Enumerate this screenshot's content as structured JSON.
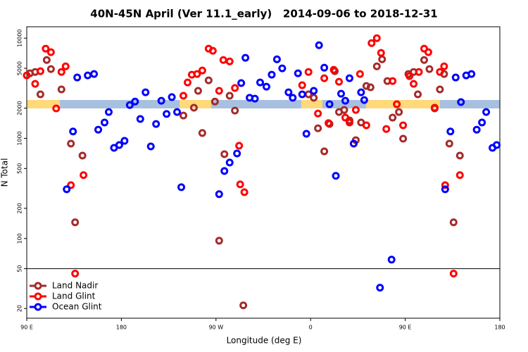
{
  "chart_data": {
    "type": "scatter",
    "title": "40N-45N April (Ver 11.1_early)   2014-09-06 to 2018-12-31",
    "xlabel": "Longitude (deg E)",
    "ylabel": "N Total",
    "xlim": [
      90,
      540
    ],
    "xticks": [
      {
        "value": 90,
        "label": "90 E"
      },
      180,
      {
        "value": 270,
        "label": "90 W"
      },
      {
        "value": 360,
        "label": "0"
      },
      {
        "value": 450,
        "label": "90 E"
      },
      {
        "value": 540,
        "label": "180"
      }
    ],
    "ylim": [
      16,
      13000
    ],
    "yscale": "log",
    "yticks": [
      20,
      50,
      100,
      200,
      500,
      1000,
      2000,
      5000,
      10000
    ],
    "split_at": 50,
    "legend": "lower left",
    "series": [
      {
        "name": "Land Nadir",
        "color": "#a52a2a",
        "x": [
          93,
          98,
          103,
          109,
          113,
          123,
          132,
          136,
          143,
          239,
          249,
          253,
          257,
          263,
          269,
          273,
          278,
          283,
          288,
          296,
          358,
          363,
          367,
          373,
          378,
          383,
          387,
          392,
          397,
          403,
          408,
          413,
          417,
          423,
          428,
          433,
          438,
          444,
          448,
          453,
          458,
          462,
          468,
          473,
          478,
          483,
          487,
          492,
          496,
          502
        ],
        "values": [
          4460,
          4600,
          2750,
          6050,
          4910,
          3080,
          885,
          145,
          673,
          1690,
          2020,
          2980,
          1130,
          3790,
          2330,
          95,
          695,
          2660,
          1890,
          21.5,
          2750,
          2540,
          1260,
          741,
          1390,
          4680,
          1830,
          1920,
          1510,
          959,
          1440,
          3330,
          3230,
          5230,
          6150,
          3730,
          1610,
          1830,
          991,
          4390,
          4600,
          2750,
          6050,
          4910,
          1990,
          3080,
          4390,
          885,
          145,
          673
        ]
      },
      {
        "name": "Land Glint",
        "color": "#ff0000",
        "x": [
          90,
          98,
          103,
          108,
          113,
          118,
          123,
          127,
          132,
          136,
          144,
          239,
          243,
          247,
          252,
          257,
          263,
          267,
          273,
          277,
          283,
          288,
          292,
          293,
          297,
          352,
          358,
          367,
          373,
          377,
          382,
          387,
          393,
          397,
          403,
          407,
          413,
          418,
          423,
          427,
          432,
          438,
          442,
          448,
          454,
          458,
          463,
          468,
          472,
          478,
          483,
          487,
          488,
          496,
          502
        ],
        "values": [
          4250,
          3500,
          4680,
          7850,
          7240,
          1990,
          4600,
          5230,
          341,
          44.6,
          429,
          2660,
          3610,
          4320,
          4390,
          4760,
          7850,
          7480,
          2980,
          6050,
          5860,
          3180,
          843,
          347,
          290,
          3390,
          4600,
          1770,
          3980,
          1420,
          4830,
          3670,
          1610,
          1440,
          1920,
          4390,
          1350,
          8930,
          10000,
          7130,
          1240,
          3730,
          2190,
          1350,
          4180,
          3500,
          4600,
          7850,
          7240,
          2020,
          4600,
          5230,
          341,
          44.6,
          429
        ]
      },
      {
        "name": "Ocean Glint",
        "color": "#0000ff",
        "x": [
          128,
          134,
          138,
          148,
          154,
          158,
          164,
          168,
          173,
          178,
          183,
          188,
          193,
          198,
          203,
          208,
          213,
          218,
          223,
          228,
          233,
          237,
          273,
          278,
          283,
          290,
          294,
          298,
          302,
          307,
          312,
          318,
          323,
          328,
          333,
          339,
          343,
          348,
          352,
          356,
          363,
          368,
          373,
          378,
          384,
          389,
          393,
          397,
          401,
          408,
          411,
          426,
          437,
          488,
          493,
          498,
          503,
          508,
          513,
          518,
          523,
          527,
          533,
          537
        ],
        "values": [
          310,
          1170,
          4050,
          4250,
          4390,
          1220,
          1440,
          1830,
          804,
          857,
          944,
          2150,
          2330,
          1560,
          2880,
          830,
          1390,
          2370,
          1750,
          2580,
          1830,
          325,
          277,
          472,
          573,
          706,
          3560,
          6370,
          2540,
          2490,
          3610,
          3280,
          4320,
          6150,
          4990,
          2880,
          2540,
          4460,
          2750,
          1110,
          2980,
          8500,
          5070,
          2190,
          422,
          2790,
          2370,
          3980,
          885,
          2880,
          2410,
          32.3,
          61.5,
          310,
          1170,
          4050,
          2300,
          4250,
          4390,
          1220,
          1440,
          1830,
          804,
          857
        ]
      }
    ]
  }
}
